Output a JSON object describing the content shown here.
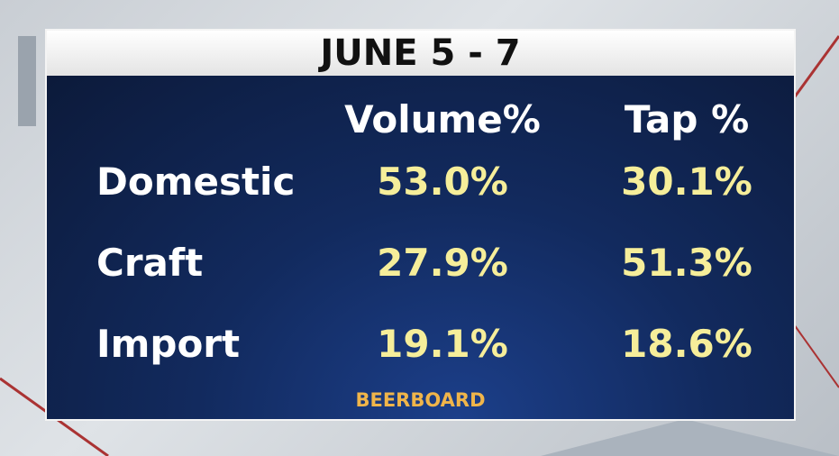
{
  "header": {
    "title": "JUNE 5 - 7"
  },
  "table": {
    "columns": [
      "Volume%",
      "Tap %"
    ],
    "rows": [
      [
        "Domestic",
        "53.0%",
        "30.1%"
      ],
      [
        "Craft",
        "27.9%",
        "51.3%"
      ],
      [
        "Import",
        "19.1%",
        "18.6%"
      ]
    ]
  },
  "footer": {
    "source": "BEERBOARD"
  }
}
